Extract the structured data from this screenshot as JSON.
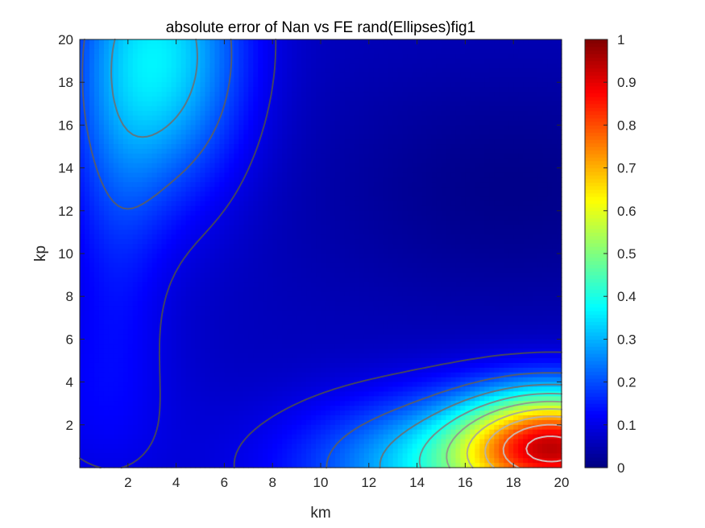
{
  "chart_data": {
    "type": "heatmap",
    "title": "absolute error of Nan vs FE rand(Ellipses)fig1",
    "xlabel": "km",
    "ylabel": "kp",
    "xlim": [
      0,
      20
    ],
    "ylim": [
      0,
      20
    ],
    "x_ticks": [
      2,
      4,
      6,
      8,
      10,
      12,
      14,
      16,
      18,
      20
    ],
    "y_ticks": [
      2,
      4,
      6,
      8,
      10,
      12,
      14,
      16,
      18,
      20
    ],
    "colorbar": {
      "colormap": "jet",
      "range": [
        0,
        1
      ],
      "ticks": [
        0,
        0.1,
        0.2,
        0.3,
        0.4,
        0.5,
        0.6,
        0.7,
        0.8,
        0.9,
        1
      ],
      "tick_labels": [
        "0",
        "0.1",
        "0.2",
        "0.3",
        "0.4",
        "0.5",
        "0.6",
        "0.7",
        "0.8",
        "0.9",
        "1"
      ]
    },
    "contour_levels": [
      0.1,
      0.2,
      0.3,
      0.4,
      0.5,
      0.6,
      0.7,
      0.8,
      0.9
    ],
    "field_features": [
      {
        "feature": "peak",
        "km": 19.5,
        "kp": 1.2,
        "value": 0.96
      },
      {
        "feature": "local maximum",
        "km": 3.5,
        "kp": 19.2,
        "value": 0.4
      },
      {
        "feature": "valley",
        "km": 18,
        "kp": 13,
        "value": 0.02
      }
    ]
  }
}
